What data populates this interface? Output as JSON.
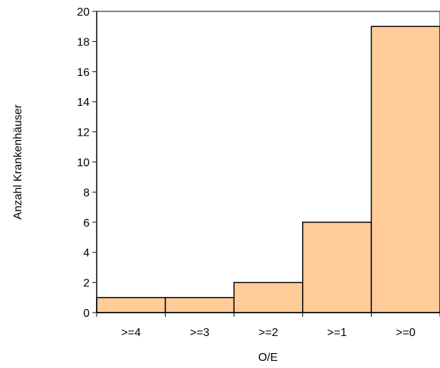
{
  "chart_data": {
    "type": "bar",
    "title": "",
    "xlabel": "O/E",
    "ylabel": "Anzahl Krankenhäuser",
    "categories": [
      ">=4",
      ">=3",
      ">=2",
      ">=1",
      ">=0"
    ],
    "values": [
      1,
      1,
      2,
      6,
      19
    ],
    "ylim": [
      0,
      20
    ],
    "yticks": [
      0,
      2,
      4,
      6,
      8,
      10,
      12,
      14,
      16,
      18,
      20
    ],
    "grid": false,
    "legend": "none",
    "bar_fill": "#FFCC99",
    "bar_stroke": "#000000",
    "bar_gap": 0
  }
}
